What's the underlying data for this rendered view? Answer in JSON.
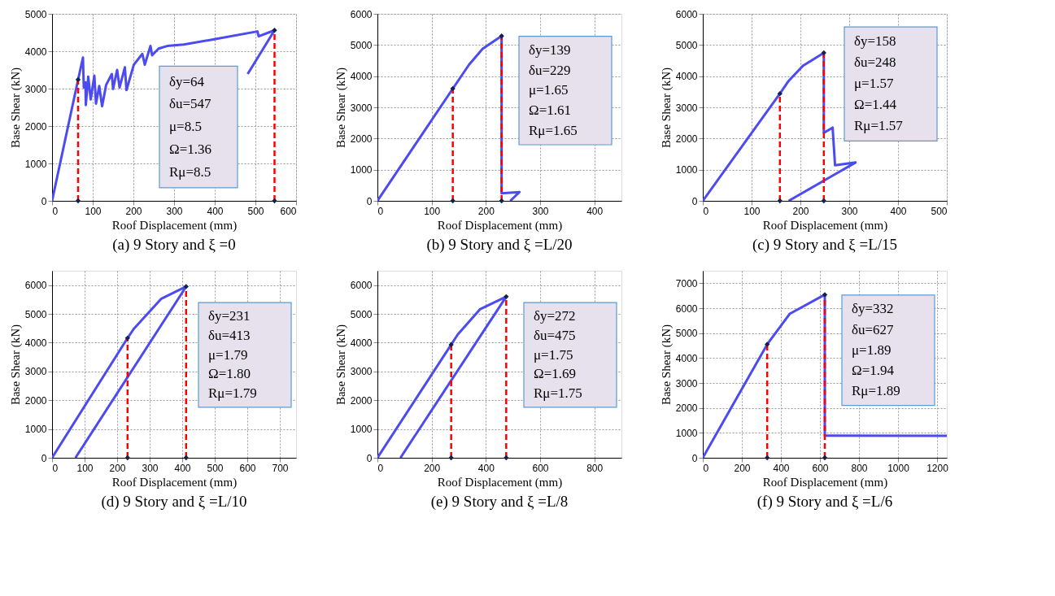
{
  "chart_data": [
    {
      "type": "line",
      "title": "(a) 9 Story and ξ =0",
      "xlabel": "Roof Displacement (mm)",
      "ylabel": "Base Shear (kN)",
      "xlim": [
        0,
        600
      ],
      "xticks": [
        0,
        100,
        200,
        300,
        400,
        500,
        600
      ],
      "ylim": [
        0,
        5000
      ],
      "yticks": [
        0,
        1000,
        2000,
        3000,
        4000,
        5000
      ],
      "grid": true,
      "annotations": [
        "δy=64",
        "δu=547",
        "μ=8.5",
        "Ω=1.36",
        "Rμ=8.5"
      ],
      "series": [
        {
          "type": "line",
          "color": "#4b4bf0",
          "x": [
            0,
            64,
            76,
            78,
            82,
            83,
            89,
            95,
            104,
            108,
            116,
            123,
            133,
            147,
            150,
            160,
            166,
            179,
            183,
            201,
            222,
            228,
            242,
            246,
            262,
            283,
            324,
            399,
            505,
            508,
            547,
            481
          ],
          "values": [
            0,
            3240,
            3830,
            3030,
            3170,
            2560,
            3320,
            2710,
            3350,
            2600,
            3070,
            2530,
            3100,
            3390,
            2990,
            3500,
            3030,
            3570,
            2960,
            3640,
            3930,
            3640,
            4140,
            3890,
            4070,
            4140,
            4180,
            4320,
            4530,
            4400,
            4560,
            3390
          ]
        },
        {
          "type": "line",
          "color": "#ff0000",
          "line_style": "dashed",
          "x": [
            64,
            64
          ],
          "values": [
            0,
            3240
          ]
        },
        {
          "type": "line",
          "color": "#ff0000",
          "line_style": "dashed",
          "x": [
            547,
            547
          ],
          "values": [
            0,
            4560
          ]
        },
        {
          "type": "scatter",
          "color": "#0d2350",
          "marker": "diamond",
          "x": [
            64,
            64,
            547,
            547
          ],
          "values": [
            3240,
            0,
            4560,
            0
          ]
        }
      ]
    },
    {
      "type": "line",
      "title": "(b) 9 Story and ξ =L/20",
      "xlabel": "Roof Displacement (mm)",
      "ylabel": "Base Shear (kN)",
      "xlim": [
        0,
        450
      ],
      "xticks": [
        0,
        100,
        200,
        300,
        400
      ],
      "ylim": [
        0,
        6000
      ],
      "yticks": [
        0,
        1000,
        2000,
        3000,
        4000,
        5000,
        6000
      ],
      "grid": true,
      "annotations": [
        "δy=139",
        "δu=229",
        "μ=1.65",
        "Ω=1.61",
        "Rμ=1.65"
      ],
      "series": [
        {
          "type": "line",
          "color": "#4b4bf0",
          "x": [
            0,
            139,
            169,
            194,
            229,
            229,
            262,
            245
          ],
          "values": [
            0,
            3600,
            4370,
            4880,
            5290,
            240,
            280,
            0
          ]
        },
        {
          "type": "line",
          "color": "#ff0000",
          "line_style": "dashed",
          "x": [
            139,
            139
          ],
          "values": [
            0,
            3600
          ]
        },
        {
          "type": "line",
          "color": "#ff0000",
          "line_style": "dashed",
          "x": [
            229,
            229
          ],
          "values": [
            0,
            5290
          ]
        },
        {
          "type": "scatter",
          "color": "#0d2350",
          "marker": "diamond",
          "x": [
            139,
            139,
            229,
            229
          ],
          "values": [
            3600,
            0,
            5290,
            0
          ]
        }
      ]
    },
    {
      "type": "line",
      "title": "(c) 9 Story and ξ =L/15",
      "xlabel": "Roof Displacement (mm)",
      "ylabel": "Base Shear (kN)",
      "xlim": [
        0,
        500
      ],
      "xticks": [
        0,
        100,
        200,
        300,
        400,
        500
      ],
      "ylim": [
        0,
        6000
      ],
      "yticks": [
        0,
        1000,
        2000,
        3000,
        4000,
        5000,
        6000
      ],
      "grid": true,
      "annotations": [
        "δy=158",
        "δu=248",
        "μ=1.57",
        "Ω=1.44",
        "Rμ=1.57"
      ],
      "series": [
        {
          "type": "line",
          "color": "#4b4bf0",
          "x": [
            0,
            158,
            176,
            205,
            248,
            248,
            266,
            271,
            313,
            176
          ],
          "values": [
            0,
            3440,
            3850,
            4330,
            4750,
            2180,
            2350,
            1140,
            1230,
            0
          ]
        },
        {
          "type": "line",
          "color": "#ff0000",
          "line_style": "dashed",
          "x": [
            158,
            158
          ],
          "values": [
            0,
            3440
          ]
        },
        {
          "type": "line",
          "color": "#ff0000",
          "line_style": "dashed",
          "x": [
            248,
            248
          ],
          "values": [
            0,
            4750
          ]
        },
        {
          "type": "scatter",
          "color": "#0d2350",
          "marker": "diamond",
          "x": [
            158,
            158,
            248,
            248
          ],
          "values": [
            3440,
            0,
            4750,
            0
          ]
        }
      ]
    },
    {
      "type": "line",
      "title": "(d) 9 Story and ξ =L/10",
      "xlabel": "Roof Displacement (mm)",
      "ylabel": "Base Shear (kN)",
      "xlim": [
        0,
        750
      ],
      "xticks": [
        0,
        100,
        200,
        300,
        400,
        500,
        600,
        700
      ],
      "ylim": [
        0,
        6500
      ],
      "yticks": [
        0,
        1000,
        2000,
        3000,
        4000,
        5000,
        6000
      ],
      "grid": true,
      "annotations": [
        "δy=231",
        "δu=413",
        "μ=1.79",
        "Ω=1.80",
        "Rμ=1.79"
      ],
      "series": [
        {
          "type": "line",
          "color": "#4b4bf0",
          "x": [
            0,
            232,
            251,
            336,
            412,
            72
          ],
          "values": [
            0,
            4160,
            4480,
            5530,
            5950,
            0
          ]
        },
        {
          "type": "line",
          "color": "#ff0000",
          "line_style": "dashed",
          "x": [
            232,
            232
          ],
          "values": [
            0,
            4160
          ]
        },
        {
          "type": "line",
          "color": "#ff0000",
          "line_style": "dashed",
          "x": [
            412,
            412
          ],
          "values": [
            0,
            5950
          ]
        },
        {
          "type": "scatter",
          "color": "#0d2350",
          "marker": "diamond",
          "x": [
            232,
            232,
            412,
            412
          ],
          "values": [
            4160,
            0,
            5950,
            0
          ]
        }
      ]
    },
    {
      "type": "line",
      "title": "(e) 9 Story and ξ =L/8",
      "xlabel": "Roof Displacement (mm)",
      "ylabel": "Base Shear (kN)",
      "xlim": [
        0,
        900
      ],
      "xticks": [
        0,
        200,
        400,
        600,
        800
      ],
      "ylim": [
        0,
        6500
      ],
      "yticks": [
        0,
        1000,
        2000,
        3000,
        4000,
        5000,
        6000
      ],
      "grid": true,
      "annotations": [
        "δy=272",
        "δu=475",
        "μ=1.75",
        "Ω=1.69",
        "Rμ=1.75"
      ],
      "series": [
        {
          "type": "line",
          "color": "#4b4bf0",
          "x": [
            0,
            272,
            296,
            378,
            475,
            85
          ],
          "values": [
            0,
            3930,
            4280,
            5160,
            5600,
            0
          ]
        },
        {
          "type": "line",
          "color": "#ff0000",
          "line_style": "dashed",
          "x": [
            272,
            272
          ],
          "values": [
            0,
            3930
          ]
        },
        {
          "type": "line",
          "color": "#ff0000",
          "line_style": "dashed",
          "x": [
            475,
            475
          ],
          "values": [
            0,
            5600
          ]
        },
        {
          "type": "scatter",
          "color": "#0d2350",
          "marker": "diamond",
          "x": [
            272,
            272,
            475,
            475
          ],
          "values": [
            3930,
            0,
            5600,
            0
          ]
        }
      ]
    },
    {
      "type": "line",
      "title": "(f) 9 Story and ξ =L/6",
      "xlabel": "Roof Displacement (mm)",
      "ylabel": "Base Shear (kN)",
      "xlim": [
        0,
        1250
      ],
      "xticks": [
        0,
        200,
        400,
        600,
        800,
        1000,
        1200
      ],
      "ylim": [
        0,
        7500
      ],
      "yticks": [
        0,
        1000,
        2000,
        3000,
        4000,
        5000,
        6000,
        7000
      ],
      "grid": true,
      "annotations": [
        "δy=332",
        "δu=627",
        "μ=1.89",
        "Ω=1.94",
        "Rμ=1.89"
      ],
      "series": [
        {
          "type": "line",
          "color": "#4b4bf0",
          "x": [
            0,
            330,
            445,
            625,
            625,
            1250
          ],
          "values": [
            0,
            4550,
            5770,
            6540,
            890,
            880
          ]
        },
        {
          "type": "line",
          "color": "#ff0000",
          "line_style": "dashed",
          "x": [
            330,
            330
          ],
          "values": [
            0,
            4550
          ]
        },
        {
          "type": "line",
          "color": "#ff0000",
          "line_style": "dashed",
          "x": [
            625,
            625
          ],
          "values": [
            0,
            6540
          ]
        },
        {
          "type": "scatter",
          "color": "#0d2350",
          "marker": "diamond",
          "x": [
            330,
            330,
            625,
            625
          ],
          "values": [
            4550,
            0,
            6540,
            0
          ]
        }
      ]
    }
  ]
}
